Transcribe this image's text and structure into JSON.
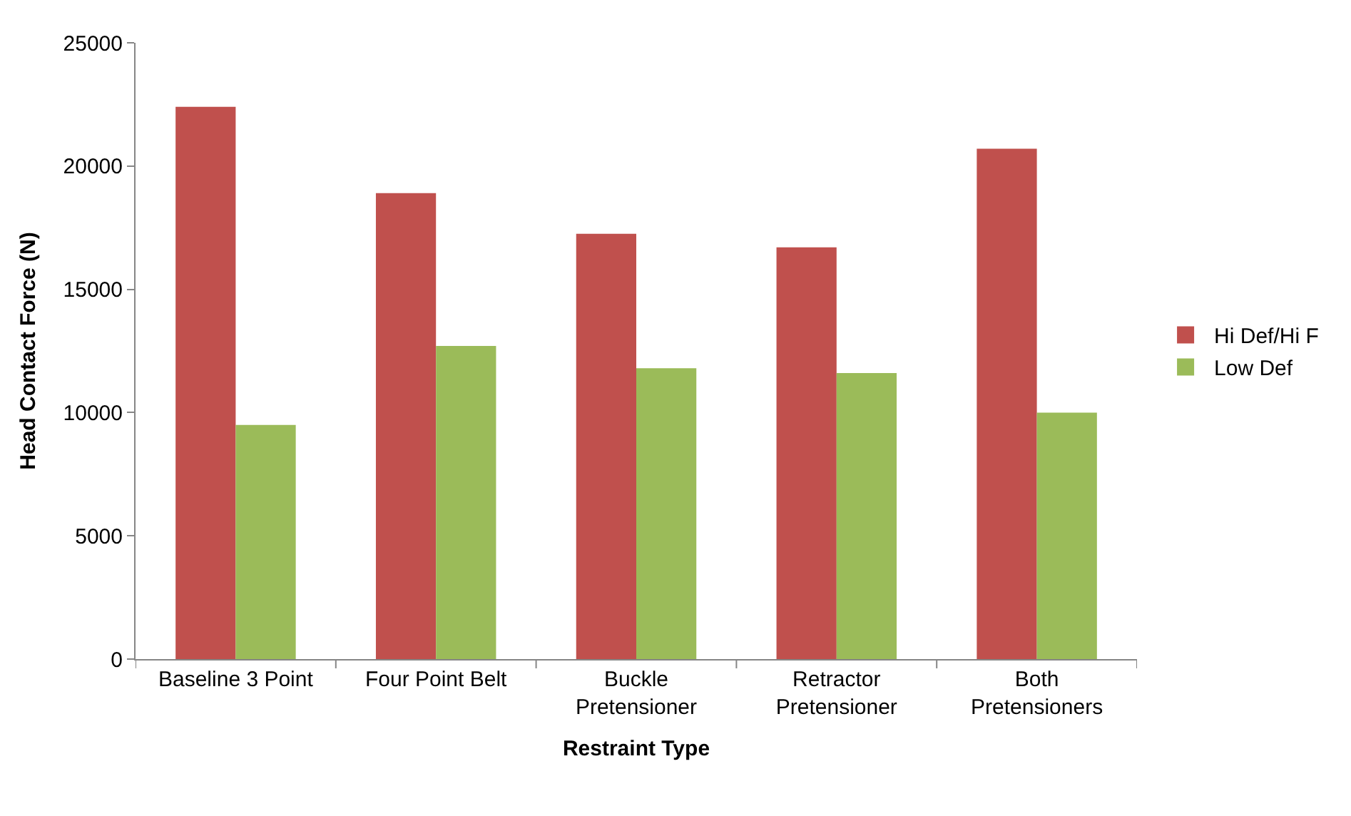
{
  "chart_data": {
    "type": "bar",
    "xlabel": "Restraint Type",
    "ylabel": "Head Contact Force (N)",
    "categories": [
      "Baseline 3 Point",
      "Four Point Belt",
      "Buckle Pretensioner",
      "Retractor Pretensioner",
      "Both Pretensioners"
    ],
    "series": [
      {
        "name": "Hi Def/Hi F",
        "color": "#c0504d",
        "values": [
          22400,
          18900,
          17250,
          16700,
          20700
        ]
      },
      {
        "name": "Low Def",
        "color": "#9bbb59",
        "values": [
          9500,
          12700,
          11800,
          11600,
          10000
        ]
      }
    ],
    "ylim": [
      0,
      25000
    ],
    "yticks": [
      0,
      5000,
      10000,
      15000,
      20000,
      25000
    ],
    "legend": "right"
  }
}
